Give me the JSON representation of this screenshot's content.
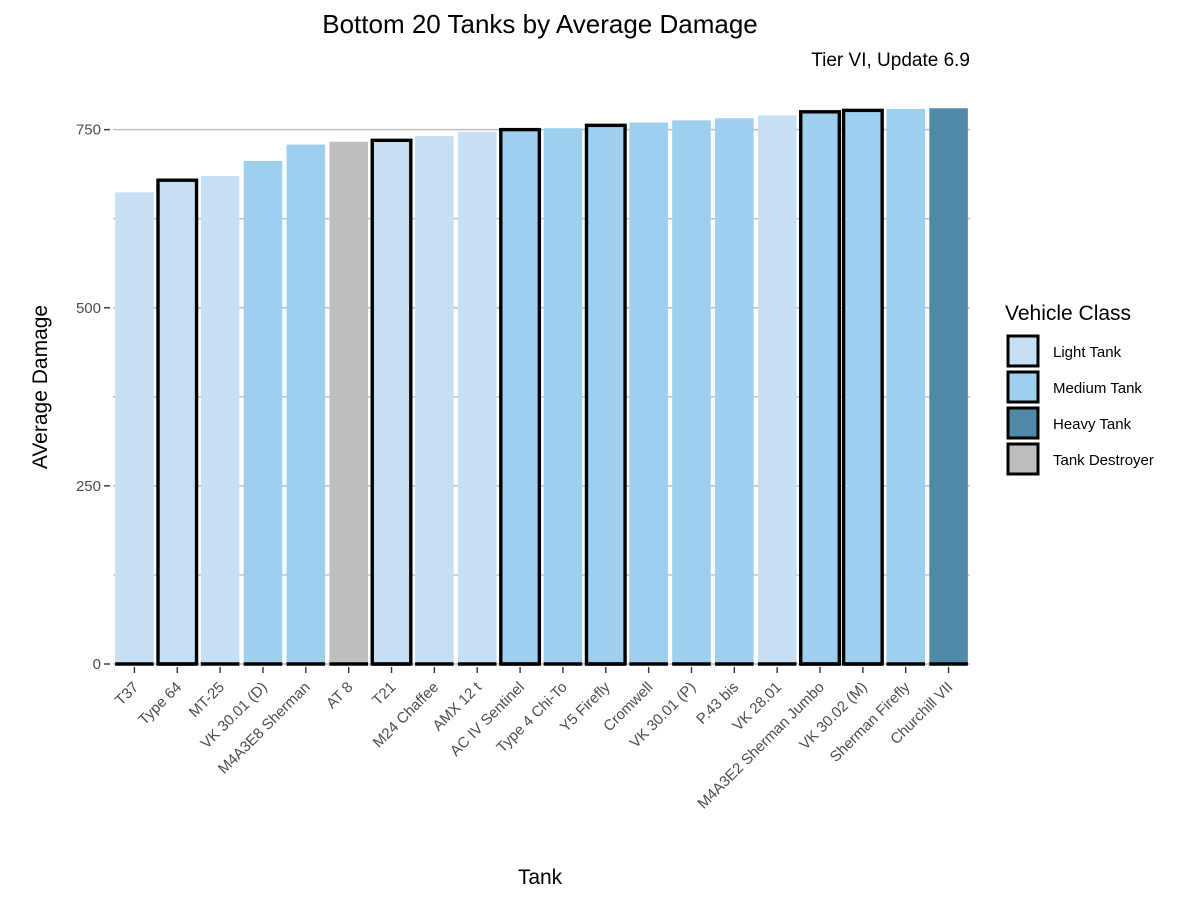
{
  "chart_data": {
    "type": "bar",
    "title": "Bottom 20 Tanks by Average Damage",
    "subtitle": "Tier VI, Update 6.9",
    "xlabel": "Tank",
    "ylabel": "AVerage Damage",
    "ylim": [
      0,
      780
    ],
    "y_ticks": [
      "0",
      "250",
      "500",
      "750"
    ],
    "y_tick_values": [
      0,
      250,
      500,
      750
    ],
    "y_minor_gridlines": [
      125,
      375,
      625
    ],
    "grid": "horizontal",
    "legend_position": "right",
    "legend": {
      "title": "Vehicle Class",
      "items": [
        {
          "label": "Light Tank",
          "color": "#c6dff3"
        },
        {
          "label": "Medium Tank",
          "color": "#9ecfee"
        },
        {
          "label": "Heavy Tank",
          "color": "#518aa8"
        },
        {
          "label": "Tank Destroyer",
          "color": "#bebebe"
        }
      ]
    },
    "categories": [
      "T37",
      "Type 64",
      "MT-25",
      "VK 30.01 (D)",
      "M4A3E8 Sherman",
      "AT 8",
      "T21",
      "M24 Chaffee",
      "AMX 12 t",
      "AC IV Sentinel",
      "Type 4 Chi-To",
      "Y5 Firefly",
      "Cromwell",
      "VK 30.01 (P)",
      "P.43 bis",
      "VK 28.01",
      "M4A3E2 Sherman Jumbo",
      "VK 30.02 (M)",
      "Sherman Firefly",
      "Churchill VII"
    ],
    "values": [
      662,
      679,
      685,
      706,
      729,
      733,
      735,
      741,
      747,
      750,
      752,
      756,
      760,
      763,
      766,
      770,
      775,
      777,
      779,
      780
    ],
    "vehicle_class": [
      "Light Tank",
      "Light Tank",
      "Light Tank",
      "Medium Tank",
      "Medium Tank",
      "Tank Destroyer",
      "Light Tank",
      "Light Tank",
      "Light Tank",
      "Medium Tank",
      "Medium Tank",
      "Medium Tank",
      "Medium Tank",
      "Medium Tank",
      "Medium Tank",
      "Light Tank",
      "Medium Tank",
      "Medium Tank",
      "Medium Tank",
      "Heavy Tank"
    ],
    "outlined": [
      false,
      true,
      false,
      false,
      false,
      false,
      true,
      false,
      false,
      true,
      false,
      true,
      false,
      false,
      false,
      false,
      true,
      true,
      false,
      false
    ]
  }
}
